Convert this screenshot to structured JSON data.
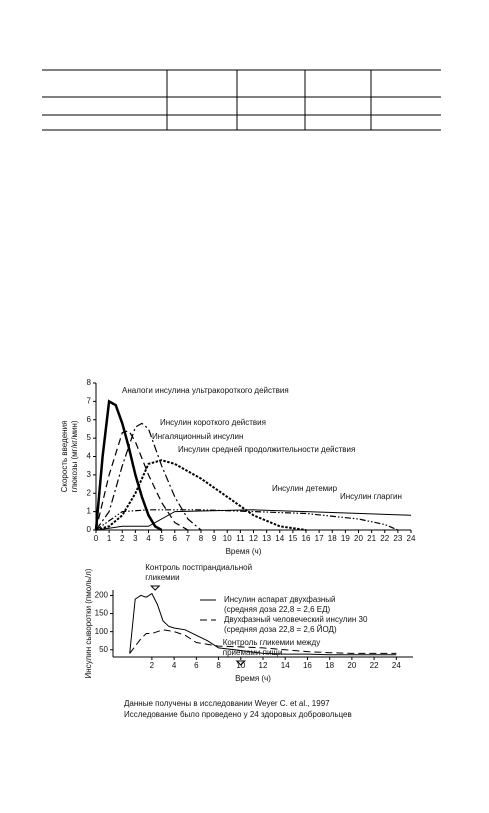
{
  "chart_data": [
    {
      "type": "line",
      "x_label": "Время (ч)",
      "y_label": "Скорость введения глюкозы (мг/кг/мин)",
      "xlim": [
        0,
        24
      ],
      "ylim": [
        0,
        8
      ],
      "xticks": [
        0,
        1,
        2,
        3,
        4,
        5,
        6,
        7,
        8,
        9,
        10,
        11,
        12,
        13,
        14,
        15,
        16,
        17,
        18,
        19,
        20,
        21,
        22,
        23,
        24
      ],
      "yticks": [
        0,
        1,
        2,
        3,
        4,
        5,
        6,
        7,
        8
      ],
      "series": [
        {
          "name": "Аналоги инсулина ультракороткого действия",
          "color": "#000000",
          "dash": "solid",
          "width": 2.5,
          "x": [
            0,
            0.5,
            1,
            1.5,
            2,
            2.5,
            3,
            3.5,
            4,
            4.5,
            5
          ],
          "values": [
            0,
            4,
            7,
            6.8,
            5.8,
            4.5,
            3,
            1.8,
            0.8,
            0.2,
            0
          ]
        },
        {
          "name": "Инсулин короткого действия",
          "color": "#000000",
          "dash": "dashdot",
          "width": 1.2,
          "x": [
            0,
            1,
            2,
            3,
            3.5,
            4,
            5,
            6,
            7,
            8
          ],
          "values": [
            0,
            1,
            3.5,
            5.6,
            5.8,
            5.5,
            3.5,
            1.8,
            0.6,
            0
          ]
        },
        {
          "name": "Ингаляционный инсулин",
          "color": "#000000",
          "dash": "dash",
          "width": 1.2,
          "x": [
            0,
            1,
            2,
            2.5,
            3,
            4,
            5,
            6,
            7
          ],
          "values": [
            0,
            3,
            5.3,
            5.4,
            4.8,
            3,
            1.5,
            0.4,
            0
          ]
        },
        {
          "name": "Инсулин средней продолжительности  действия",
          "color": "#000000",
          "dash": "dotted",
          "width": 2,
          "x": [
            0,
            1,
            2,
            3,
            4,
            5,
            6,
            8,
            10,
            12,
            14,
            16
          ],
          "values": [
            0,
            0.2,
            0.8,
            2,
            3.6,
            3.8,
            3.6,
            2.8,
            1.8,
            0.8,
            0.2,
            0
          ]
        },
        {
          "name": "Инсулин детемир",
          "color": "#000000",
          "dash": "dashdotdot",
          "width": 1.2,
          "x": [
            0,
            1,
            2,
            4,
            6,
            8,
            12,
            16,
            20,
            22,
            23
          ],
          "values": [
            0,
            0.5,
            1,
            1.1,
            1.1,
            1.1,
            1,
            0.9,
            0.6,
            0.3,
            0
          ]
        },
        {
          "name": "Инсулин гларгин",
          "color": "#000000",
          "dash": "solid",
          "width": 1,
          "x": [
            0,
            1,
            2,
            4,
            6,
            12,
            18,
            24
          ],
          "values": [
            0,
            0.1,
            0.2,
            0.2,
            1,
            1.1,
            0.95,
            0.8
          ]
        }
      ]
    },
    {
      "type": "line",
      "x_label": "Время (ч)",
      "y_label": "Инсулин сыворотки (пмоль/л)",
      "xlim": [
        -1.5,
        25.5
      ],
      "ylim": [
        30,
        215
      ],
      "xticks": [
        2,
        4,
        6,
        8,
        10,
        12,
        14,
        16,
        18,
        20,
        22,
        24
      ],
      "yticks": [
        50,
        100,
        150,
        200
      ],
      "annotations": [
        {
          "lines": [
            "Контроль постпрандиальной",
            "гликемии"
          ],
          "x": 2.3
        },
        {
          "lines": [
            "Контроль гликемии между",
            "приемами пищи"
          ],
          "x": 10
        }
      ],
      "series": [
        {
          "name": "Инсулин аспарат двухфазный",
          "detail": "(средняя доза 22,8 = 2,6 ЕД)",
          "color": "#000000",
          "dash": "solid",
          "width": 1,
          "x": [
            0,
            0.5,
            1,
            1.5,
            2,
            2.5,
            3,
            3.5,
            4,
            5,
            6,
            7,
            8,
            10,
            12,
            14,
            16,
            18,
            20,
            22,
            24
          ],
          "values": [
            40,
            190,
            200,
            195,
            205,
            175,
            130,
            115,
            110,
            105,
            90,
            75,
            55,
            48,
            40,
            38,
            38,
            36,
            36,
            36,
            36
          ]
        },
        {
          "name": "Двухфазный человеческий инсулин 30",
          "detail": "(средняя доза 22,8 = 2,6 ЙОД)",
          "color": "#000000",
          "dash": "dash",
          "width": 1,
          "x": [
            0,
            1,
            1.5,
            2,
            3,
            4,
            5,
            6,
            8,
            10,
            12,
            14,
            16,
            18,
            20,
            22,
            24
          ],
          "values": [
            40,
            80,
            95,
            95,
            105,
            100,
            90,
            70,
            60,
            58,
            55,
            50,
            45,
            42,
            40,
            40,
            40
          ]
        }
      ]
    }
  ],
  "notes": [
    "Данные получены в исследовании Weyer C. et al., 1997",
    "Исследование было проведено у 24 здоровых добровольцев"
  ]
}
